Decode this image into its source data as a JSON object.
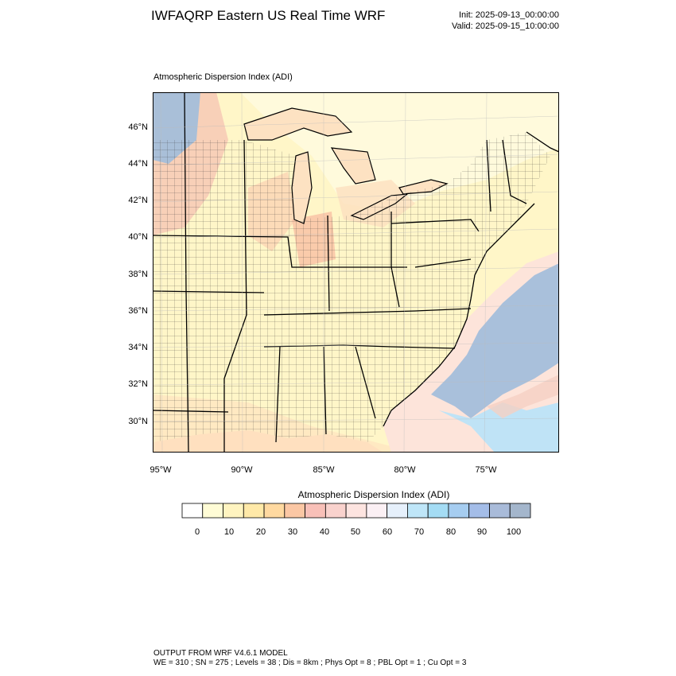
{
  "header": {
    "title": "IWFAQRP Eastern US Real Time WRF",
    "init": "Init: 2025-09-13_00:00:00",
    "valid": "Valid: 2025-09-15_10:00:00"
  },
  "plot": {
    "field_label": "Atmospheric Dispersion Index   (ADI)",
    "lat_labels": [
      "46°N",
      "44°N",
      "42°N",
      "40°N",
      "38°N",
      "36°N",
      "34°N",
      "32°N",
      "30°N"
    ],
    "lon_labels": [
      "95°W",
      "90°W",
      "85°W",
      "80°W",
      "75°W"
    ]
  },
  "legend": {
    "title": "Atmospheric Dispersion Index  (ADI)",
    "labels": [
      "0",
      "10",
      "20",
      "30",
      "40",
      "50",
      "60",
      "70",
      "80",
      "90",
      "100"
    ],
    "colors": [
      "#ffffff",
      "#fffcd6",
      "#fff4c0",
      "#ffe9a8",
      "#ffd9a0",
      "#fbc7a4",
      "#f8c0b8",
      "#f9d2cd",
      "#fde4e0",
      "#fbf0f4",
      "#e6f0fb",
      "#bfe6f8",
      "#a4dcf4",
      "#a6cdf0",
      "#a4bde8",
      "#a9bbd9",
      "#a4b6cc"
    ]
  },
  "footer": {
    "line1": "OUTPUT FROM WRF V4.6.1 MODEL",
    "line2": "WE = 310 ; SN = 275 ; Levels = 38 ; Dis = 8km ; Phys Opt = 8 ; PBL Opt = 1 ; Cu Opt = 3"
  }
}
